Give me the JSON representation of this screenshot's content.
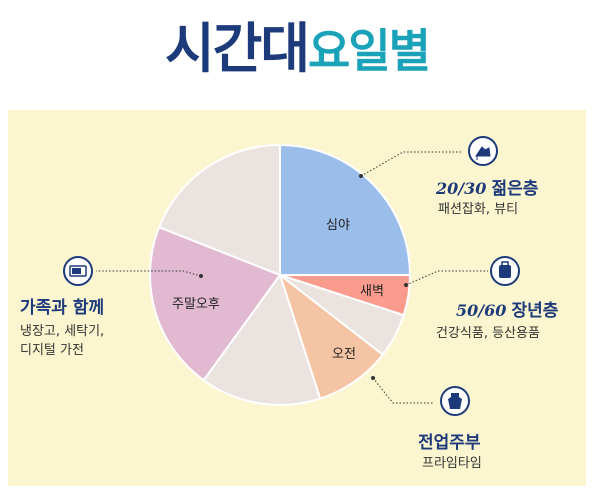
{
  "title": {
    "part1": "시간대",
    "part2": "요일별"
  },
  "chart_data": {
    "type": "pie",
    "slices": [
      {
        "label": "심야",
        "value": 25.0,
        "color": "#9bbde9"
      },
      {
        "label": "새벽",
        "value": 5.0,
        "color": "#fa9b8d"
      },
      {
        "label": "",
        "value": 5.5,
        "color": "#ebe3df"
      },
      {
        "label": "오전",
        "value": 9.5,
        "color": "#f4c4a4"
      },
      {
        "label": "",
        "value": 15.0,
        "color": "#ebe3df"
      },
      {
        "label": "주말오후",
        "value": 21.0,
        "color": "#e1b9d0"
      },
      {
        "label": "",
        "value": 19.0,
        "color": "#ebe3df"
      }
    ],
    "start_angle_deg": -90,
    "direction": "clockwise"
  },
  "callouts": {
    "young": {
      "age": "20/30",
      "title": "젊은층",
      "desc": "패션잡화, 뷰티",
      "icon": "high-heel-icon"
    },
    "senior": {
      "age": "50/60",
      "title": "장년층",
      "desc": "건강식품, 등산용품",
      "icon": "backpack-icon"
    },
    "homemaker": {
      "title": "전업주부",
      "desc": "프라임타임",
      "icon": "apron-icon"
    },
    "family": {
      "title": "가족과 함께",
      "desc1": "냉장고, 세탁기,",
      "desc2": "디지털 가전",
      "icon": "microwave-icon"
    }
  },
  "colors": {
    "navy": "#1d3a7b",
    "teal": "#1aa3b8",
    "panel": "#fbf6cf"
  }
}
